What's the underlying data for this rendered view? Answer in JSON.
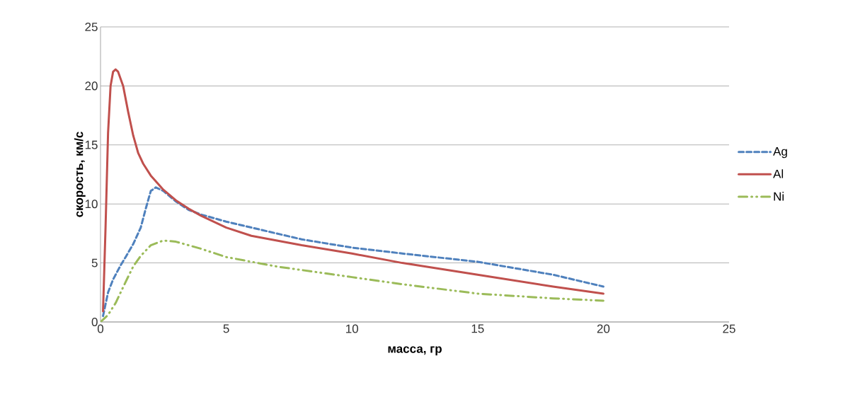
{
  "chart_data": {
    "type": "line",
    "xlabel": "масса, гр",
    "ylabel": "скорость, км/с",
    "xlim": [
      0,
      25
    ],
    "ylim": [
      0,
      25
    ],
    "xticks": [
      0,
      5,
      10,
      15,
      20,
      25
    ],
    "yticks": [
      0,
      5,
      10,
      15,
      20,
      25
    ],
    "grid": "y",
    "legend": "right",
    "marker": "none",
    "series": [
      {
        "name": "Ag",
        "color": "#4f81bd",
        "line_style": "dashed",
        "x": [
          0.1,
          0.3,
          0.5,
          0.8,
          1,
          1.3,
          1.6,
          1.8,
          2,
          2.2,
          2.5,
          3,
          3.5,
          4,
          5,
          6,
          8,
          10,
          12,
          15,
          18,
          20
        ],
        "values": [
          0.5,
          2.5,
          3.6,
          4.8,
          5.5,
          6.6,
          8,
          9.6,
          11.1,
          11.4,
          11.1,
          10.2,
          9.5,
          9.1,
          8.5,
          8.0,
          7.0,
          6.3,
          5.8,
          5.1,
          4.0,
          3.0
        ]
      },
      {
        "name": "Al",
        "color": "#c0504d",
        "line_style": "solid",
        "x": [
          0.1,
          0.2,
          0.3,
          0.4,
          0.5,
          0.6,
          0.7,
          0.9,
          1.1,
          1.3,
          1.5,
          1.7,
          2,
          2.5,
          3,
          3.5,
          4,
          5,
          6,
          8,
          10,
          12,
          15,
          18,
          20
        ],
        "values": [
          0.9,
          8,
          16,
          20,
          21.2,
          21.4,
          21.2,
          20,
          17.8,
          15.8,
          14.3,
          13.4,
          12.4,
          11.2,
          10.3,
          9.6,
          9.0,
          8.0,
          7.3,
          6.5,
          5.8,
          5.0,
          4.0,
          3.0,
          2.4
        ]
      },
      {
        "name": "Ni",
        "color": "#9bbb59",
        "line_style": "dashdotdot",
        "x": [
          0,
          0.3,
          0.6,
          1,
          1.3,
          1.6,
          2,
          2.5,
          3,
          4,
          5,
          7,
          10,
          12,
          15,
          18,
          20
        ],
        "values": [
          0,
          0.6,
          1.6,
          3.4,
          4.7,
          5.6,
          6.5,
          6.9,
          6.8,
          6.2,
          5.5,
          4.7,
          3.8,
          3.2,
          2.4,
          2.0,
          1.8
        ]
      }
    ]
  }
}
